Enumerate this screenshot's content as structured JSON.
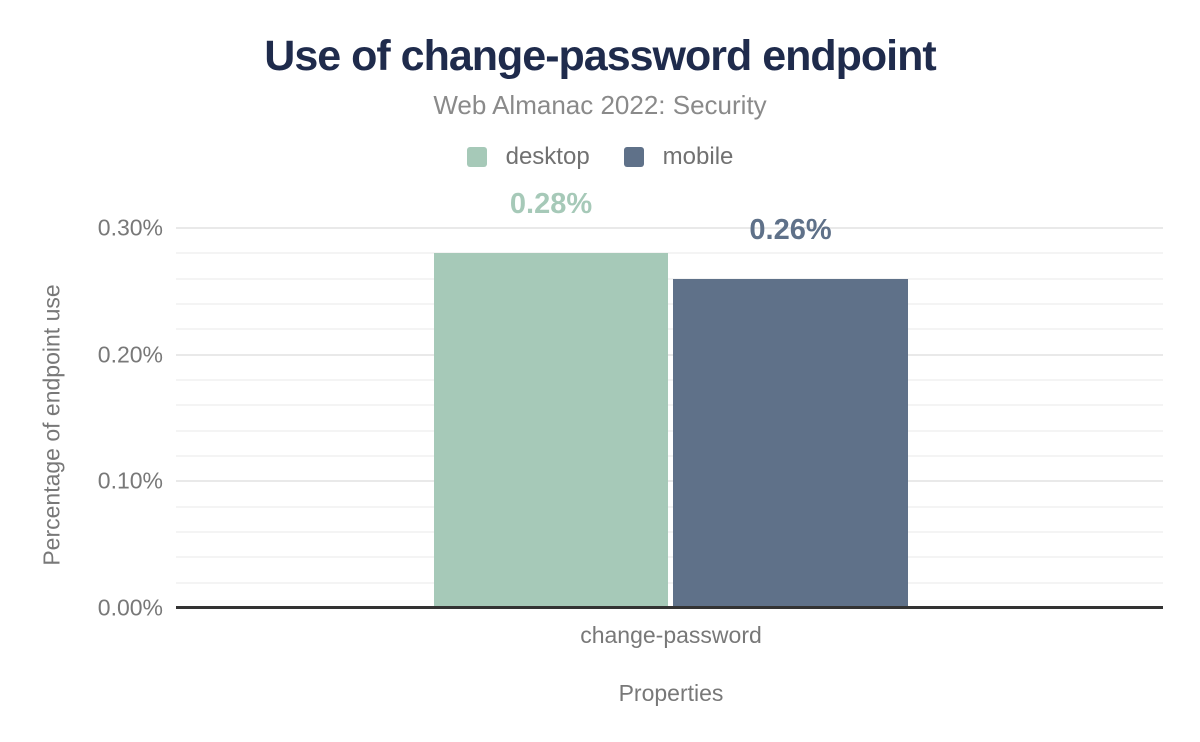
{
  "chart_data": {
    "type": "bar",
    "title": "Use of change-password endpoint",
    "subtitle": "Web Almanac 2022: Security",
    "categories": [
      "change-password"
    ],
    "series": [
      {
        "name": "desktop",
        "values": [
          0.28
        ],
        "data_labels": [
          "0.28%"
        ],
        "color": "#a6c9b8"
      },
      {
        "name": "mobile",
        "values": [
          0.26
        ],
        "data_labels": [
          "0.26%"
        ],
        "color": "#5f7189"
      }
    ],
    "xlabel": "Properties",
    "ylabel": "Percentage of endpoint use",
    "ylim": [
      0,
      0.32
    ],
    "yticks": [
      {
        "value": 0.0,
        "label": "0.00%"
      },
      {
        "value": 0.1,
        "label": "0.10%"
      },
      {
        "value": 0.2,
        "label": "0.20%"
      },
      {
        "value": 0.3,
        "label": "0.30%"
      }
    ],
    "y_minor_step": 0.02,
    "y_major_step": 0.1,
    "grid_max": 0.3,
    "grid": "horizontal",
    "legend_position": "top-center"
  },
  "colors": {
    "background": "#ffffff",
    "title": "#1f2b4c",
    "subtitle": "#8a8a8a",
    "axis_text": "#787878",
    "legend_text": "#717171",
    "baseline": "#333333",
    "grid_minor": "#f4f4f4",
    "grid_major": "#e9e9e9"
  }
}
